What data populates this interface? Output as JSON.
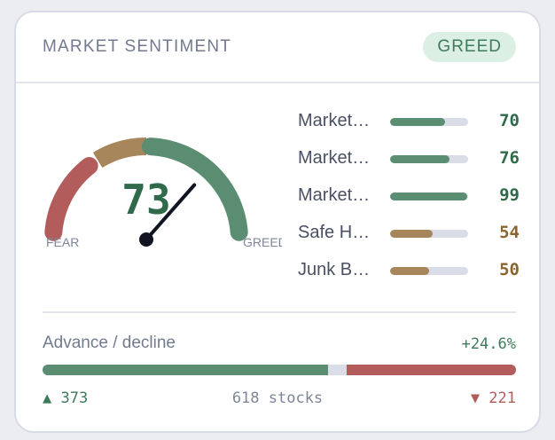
{
  "header": {
    "title": "MARKET SENTIMENT",
    "badge": "GREED"
  },
  "gauge": {
    "value": "73",
    "min_label": "FEAR",
    "max_label": "GREED",
    "fraction": 0.73,
    "colors": {
      "fear": "#b25c5c",
      "neutral": "#a6865a",
      "greed": "#5a8d72",
      "value": "#2f6a4b"
    }
  },
  "metrics": [
    {
      "label": "Market…",
      "value": "70",
      "level": 70,
      "color": "#5a8d72",
      "text_color": "#2f6a4b"
    },
    {
      "label": "Market…",
      "value": "76",
      "level": 76,
      "color": "#5a8d72",
      "text_color": "#2f6a4b"
    },
    {
      "label": "Market…",
      "value": "99",
      "level": 99,
      "color": "#5a8d72",
      "text_color": "#2f6a4b"
    },
    {
      "label": "Safe H…",
      "value": "54",
      "level": 54,
      "color": "#a6865a",
      "text_color": "#8a6530"
    },
    {
      "label": "Junk B…",
      "value": "50",
      "level": 50,
      "color": "#a6865a",
      "text_color": "#8a6530"
    }
  ],
  "advance_decline": {
    "label": "Advance / decline",
    "change": "+24.6%",
    "advancers": "▲ 373",
    "decliners": "▼ 221",
    "total": "618 stocks",
    "advancers_count": 373,
    "decliners_count": 221,
    "unchanged_count": 24,
    "colors": {
      "advance": "#5a8d72",
      "decline": "#b25c5c",
      "unchanged": "#dadde7"
    }
  }
}
